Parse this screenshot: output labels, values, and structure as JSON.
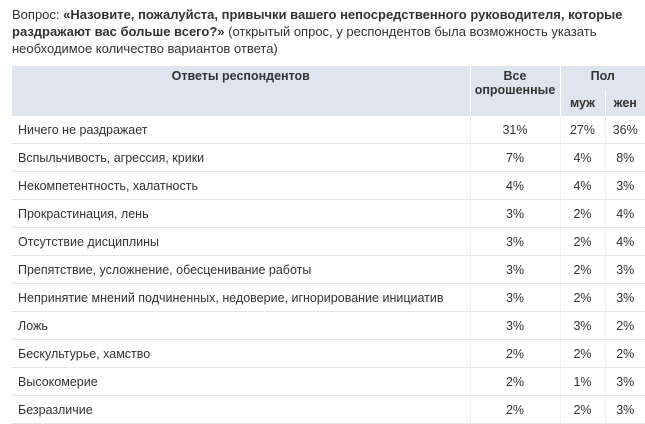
{
  "question": {
    "prefix": "Вопрос:",
    "text": "«Назовите, пожалуйста, привычки вашего непосредственного руководителя, которые раздражают вас больше всего?»",
    "note": "(открытый опрос, у респондентов была возможность указать необходимое количество вариантов ответа)"
  },
  "table": {
    "header": {
      "answers": "Ответы респондентов",
      "all": "Все опрошенные",
      "gender": "Пол",
      "male": "муж",
      "female": "жен"
    },
    "rows": [
      [
        "Ничего не раздражает",
        "31%",
        "27%",
        "36%"
      ],
      [
        "Вспыльчивость, агрессия, крики",
        "7%",
        "4%",
        "8%"
      ],
      [
        "Некомпетентность, халатность",
        "4%",
        "4%",
        "3%"
      ],
      [
        "Прокрастинация, лень",
        "3%",
        "2%",
        "4%"
      ],
      [
        "Отсутствие дисциплины",
        "3%",
        "2%",
        "4%"
      ],
      [
        "Препятствие, усложнение, обесценивание работы",
        "3%",
        "2%",
        "3%"
      ],
      [
        "Непринятие мнений подчиненных, недоверие, игнорирование инициатив",
        "3%",
        "2%",
        "3%"
      ],
      [
        "Ложь",
        "3%",
        "3%",
        "2%"
      ],
      [
        "Бескультурье, хамство",
        "2%",
        "2%",
        "2%"
      ],
      [
        "Высокомерие",
        "2%",
        "1%",
        "3%"
      ],
      [
        "Безразличие",
        "2%",
        "2%",
        "3%"
      ]
    ]
  }
}
